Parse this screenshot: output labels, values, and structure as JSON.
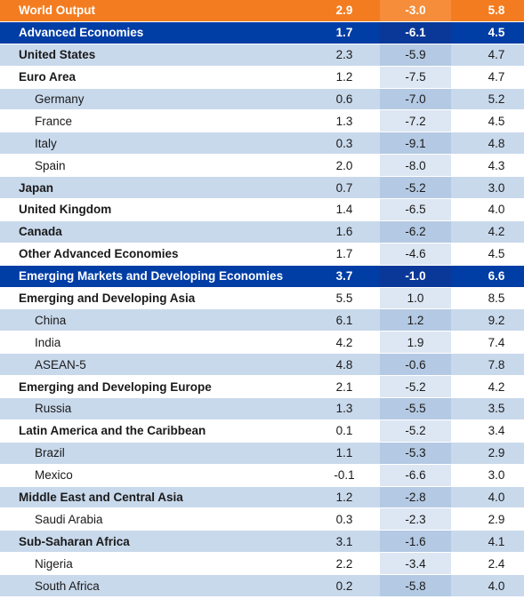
{
  "table": {
    "rows": [
      {
        "label": "World Output",
        "v2019": "2.9",
        "v2020": "-3.0",
        "v2021": "5.8",
        "style": "topline"
      },
      {
        "label": "Advanced Economies",
        "v2019": "1.7",
        "v2020": "-6.1",
        "v2021": "4.5",
        "style": "highlight"
      },
      {
        "label": "United States",
        "v2019": "2.3",
        "v2020": "-5.9",
        "v2021": "4.7",
        "style": "blue bold"
      },
      {
        "label": "Euro Area",
        "v2019": "1.2",
        "v2020": "-7.5",
        "v2021": "4.7",
        "style": "light bold"
      },
      {
        "label": "Germany",
        "v2019": "0.6",
        "v2020": "-7.0",
        "v2021": "5.2",
        "style": "blue sub"
      },
      {
        "label": "France",
        "v2019": "1.3",
        "v2020": "-7.2",
        "v2021": "4.5",
        "style": "light sub"
      },
      {
        "label": "Italy",
        "v2019": "0.3",
        "v2020": "-9.1",
        "v2021": "4.8",
        "style": "blue sub"
      },
      {
        "label": "Spain",
        "v2019": "2.0",
        "v2020": "-8.0",
        "v2021": "4.3",
        "style": "light sub"
      },
      {
        "label": "Japan",
        "v2019": "0.7",
        "v2020": "-5.2",
        "v2021": "3.0",
        "style": "blue bold"
      },
      {
        "label": "United Kingdom",
        "v2019": "1.4",
        "v2020": "-6.5",
        "v2021": "4.0",
        "style": "light bold"
      },
      {
        "label": "Canada",
        "v2019": "1.6",
        "v2020": "-6.2",
        "v2021": "4.2",
        "style": "blue bold"
      },
      {
        "label": "Other Advanced Economies",
        "v2019": "1.7",
        "v2020": "-4.6",
        "v2021": "4.5",
        "style": "light bold"
      },
      {
        "label": "Emerging Markets and Developing Economies",
        "v2019": "3.7",
        "v2020": "-1.0",
        "v2021": "6.6",
        "style": "highlight"
      },
      {
        "label": "Emerging and Developing Asia",
        "v2019": "5.5",
        "v2020": "1.0",
        "v2021": "8.5",
        "style": "light bold"
      },
      {
        "label": "China",
        "v2019": "6.1",
        "v2020": "1.2",
        "v2021": "9.2",
        "style": "blue sub"
      },
      {
        "label": "India",
        "v2019": "4.2",
        "v2020": "1.9",
        "v2021": "7.4",
        "style": "light sub"
      },
      {
        "label": "ASEAN-5",
        "v2019": "4.8",
        "v2020": "-0.6",
        "v2021": "7.8",
        "style": "blue sub"
      },
      {
        "label": "Emerging and Developing Europe",
        "v2019": "2.1",
        "v2020": "-5.2",
        "v2021": "4.2",
        "style": "light bold"
      },
      {
        "label": "Russia",
        "v2019": "1.3",
        "v2020": "-5.5",
        "v2021": "3.5",
        "style": "blue sub"
      },
      {
        "label": "Latin America and the Caribbean",
        "v2019": "0.1",
        "v2020": "-5.2",
        "v2021": "3.4",
        "style": "light bold"
      },
      {
        "label": "Brazil",
        "v2019": "1.1",
        "v2020": "-5.3",
        "v2021": "2.9",
        "style": "blue sub"
      },
      {
        "label": "Mexico",
        "v2019": "-0.1",
        "v2020": "-6.6",
        "v2021": "3.0",
        "style": "light sub"
      },
      {
        "label": "Middle East and Central Asia",
        "v2019": "1.2",
        "v2020": "-2.8",
        "v2021": "4.0",
        "style": "blue bold"
      },
      {
        "label": "Saudi Arabia",
        "v2019": "0.3",
        "v2020": "-2.3",
        "v2021": "2.9",
        "style": "light sub"
      },
      {
        "label": "Sub-Saharan Africa",
        "v2019": "3.1",
        "v2020": "-1.6",
        "v2021": "4.1",
        "style": "blue bold"
      },
      {
        "label": "Nigeria",
        "v2019": "2.2",
        "v2020": "-3.4",
        "v2021": "2.4",
        "style": "light sub"
      },
      {
        "label": "South Africa",
        "v2019": "0.2",
        "v2020": "-5.8",
        "v2021": "4.0",
        "style": "blue sub"
      }
    ]
  },
  "colors": {
    "orange_header": "#f47c20",
    "navy_header": "#003da5",
    "light_blue_row": "#c9d9ec"
  }
}
